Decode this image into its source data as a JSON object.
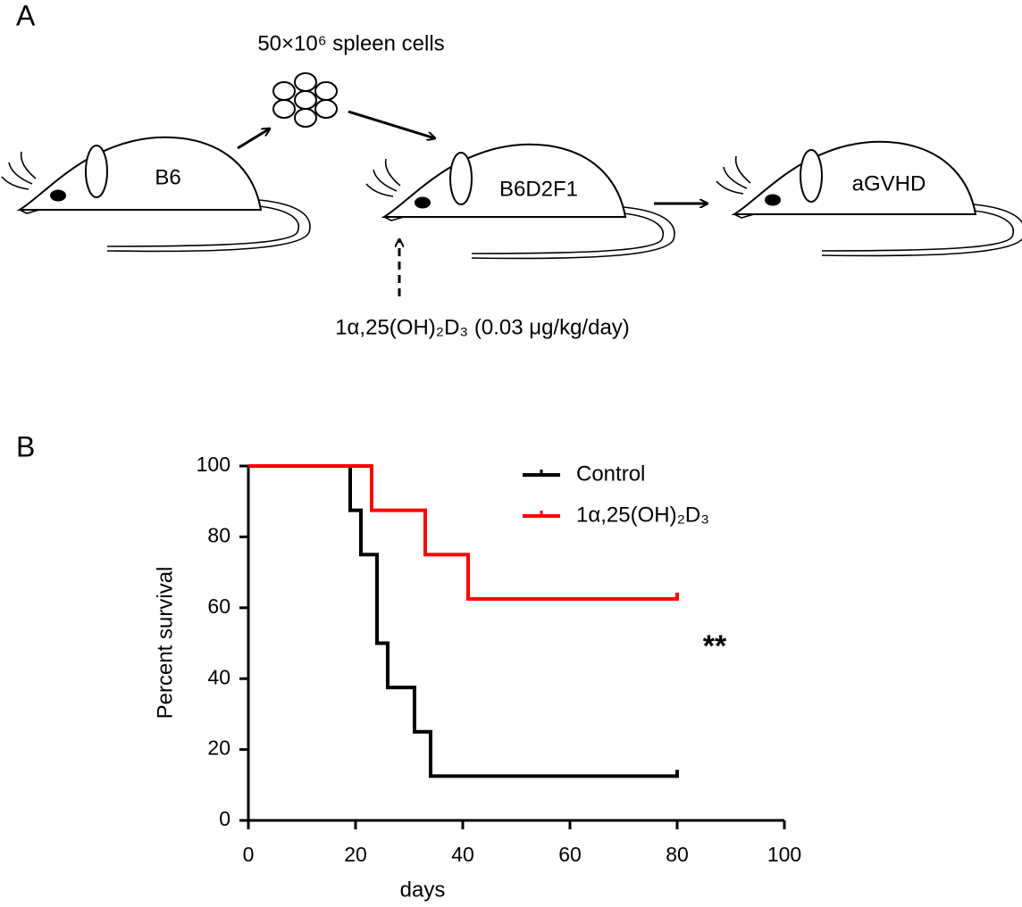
{
  "panel_a": {
    "label": "A",
    "cells_label": "50×10⁶ spleen cells",
    "mice": [
      "B6",
      "B6D2F1",
      "aGVHD"
    ],
    "treatment": "1α,25(OH)₂D₃ (0.03 μg/kg/day)"
  },
  "panel_b_label": "B",
  "chart_data": {
    "type": "line",
    "steps": "post",
    "xlabel": "days",
    "ylabel": "Percent survival",
    "annotation": "**",
    "xlim": [
      0,
      100
    ],
    "xticks": [
      0,
      20,
      40,
      60,
      80,
      100
    ],
    "ylim": [
      0,
      100
    ],
    "yticks": [
      0,
      20,
      40,
      60,
      80,
      100
    ],
    "series": [
      {
        "name": "Control",
        "color": "#000000",
        "x": [
          0,
          19,
          21,
          24,
          26,
          31,
          34,
          80
        ],
        "values": [
          100,
          87.5,
          75,
          50,
          37.5,
          25,
          12.5,
          12.5
        ]
      },
      {
        "name": "1α,25(OH)₂D₃",
        "color": "#ff0000",
        "x": [
          0,
          23,
          33,
          41,
          80
        ],
        "values": [
          100,
          87.5,
          75,
          62.5,
          62.5
        ]
      }
    ]
  }
}
